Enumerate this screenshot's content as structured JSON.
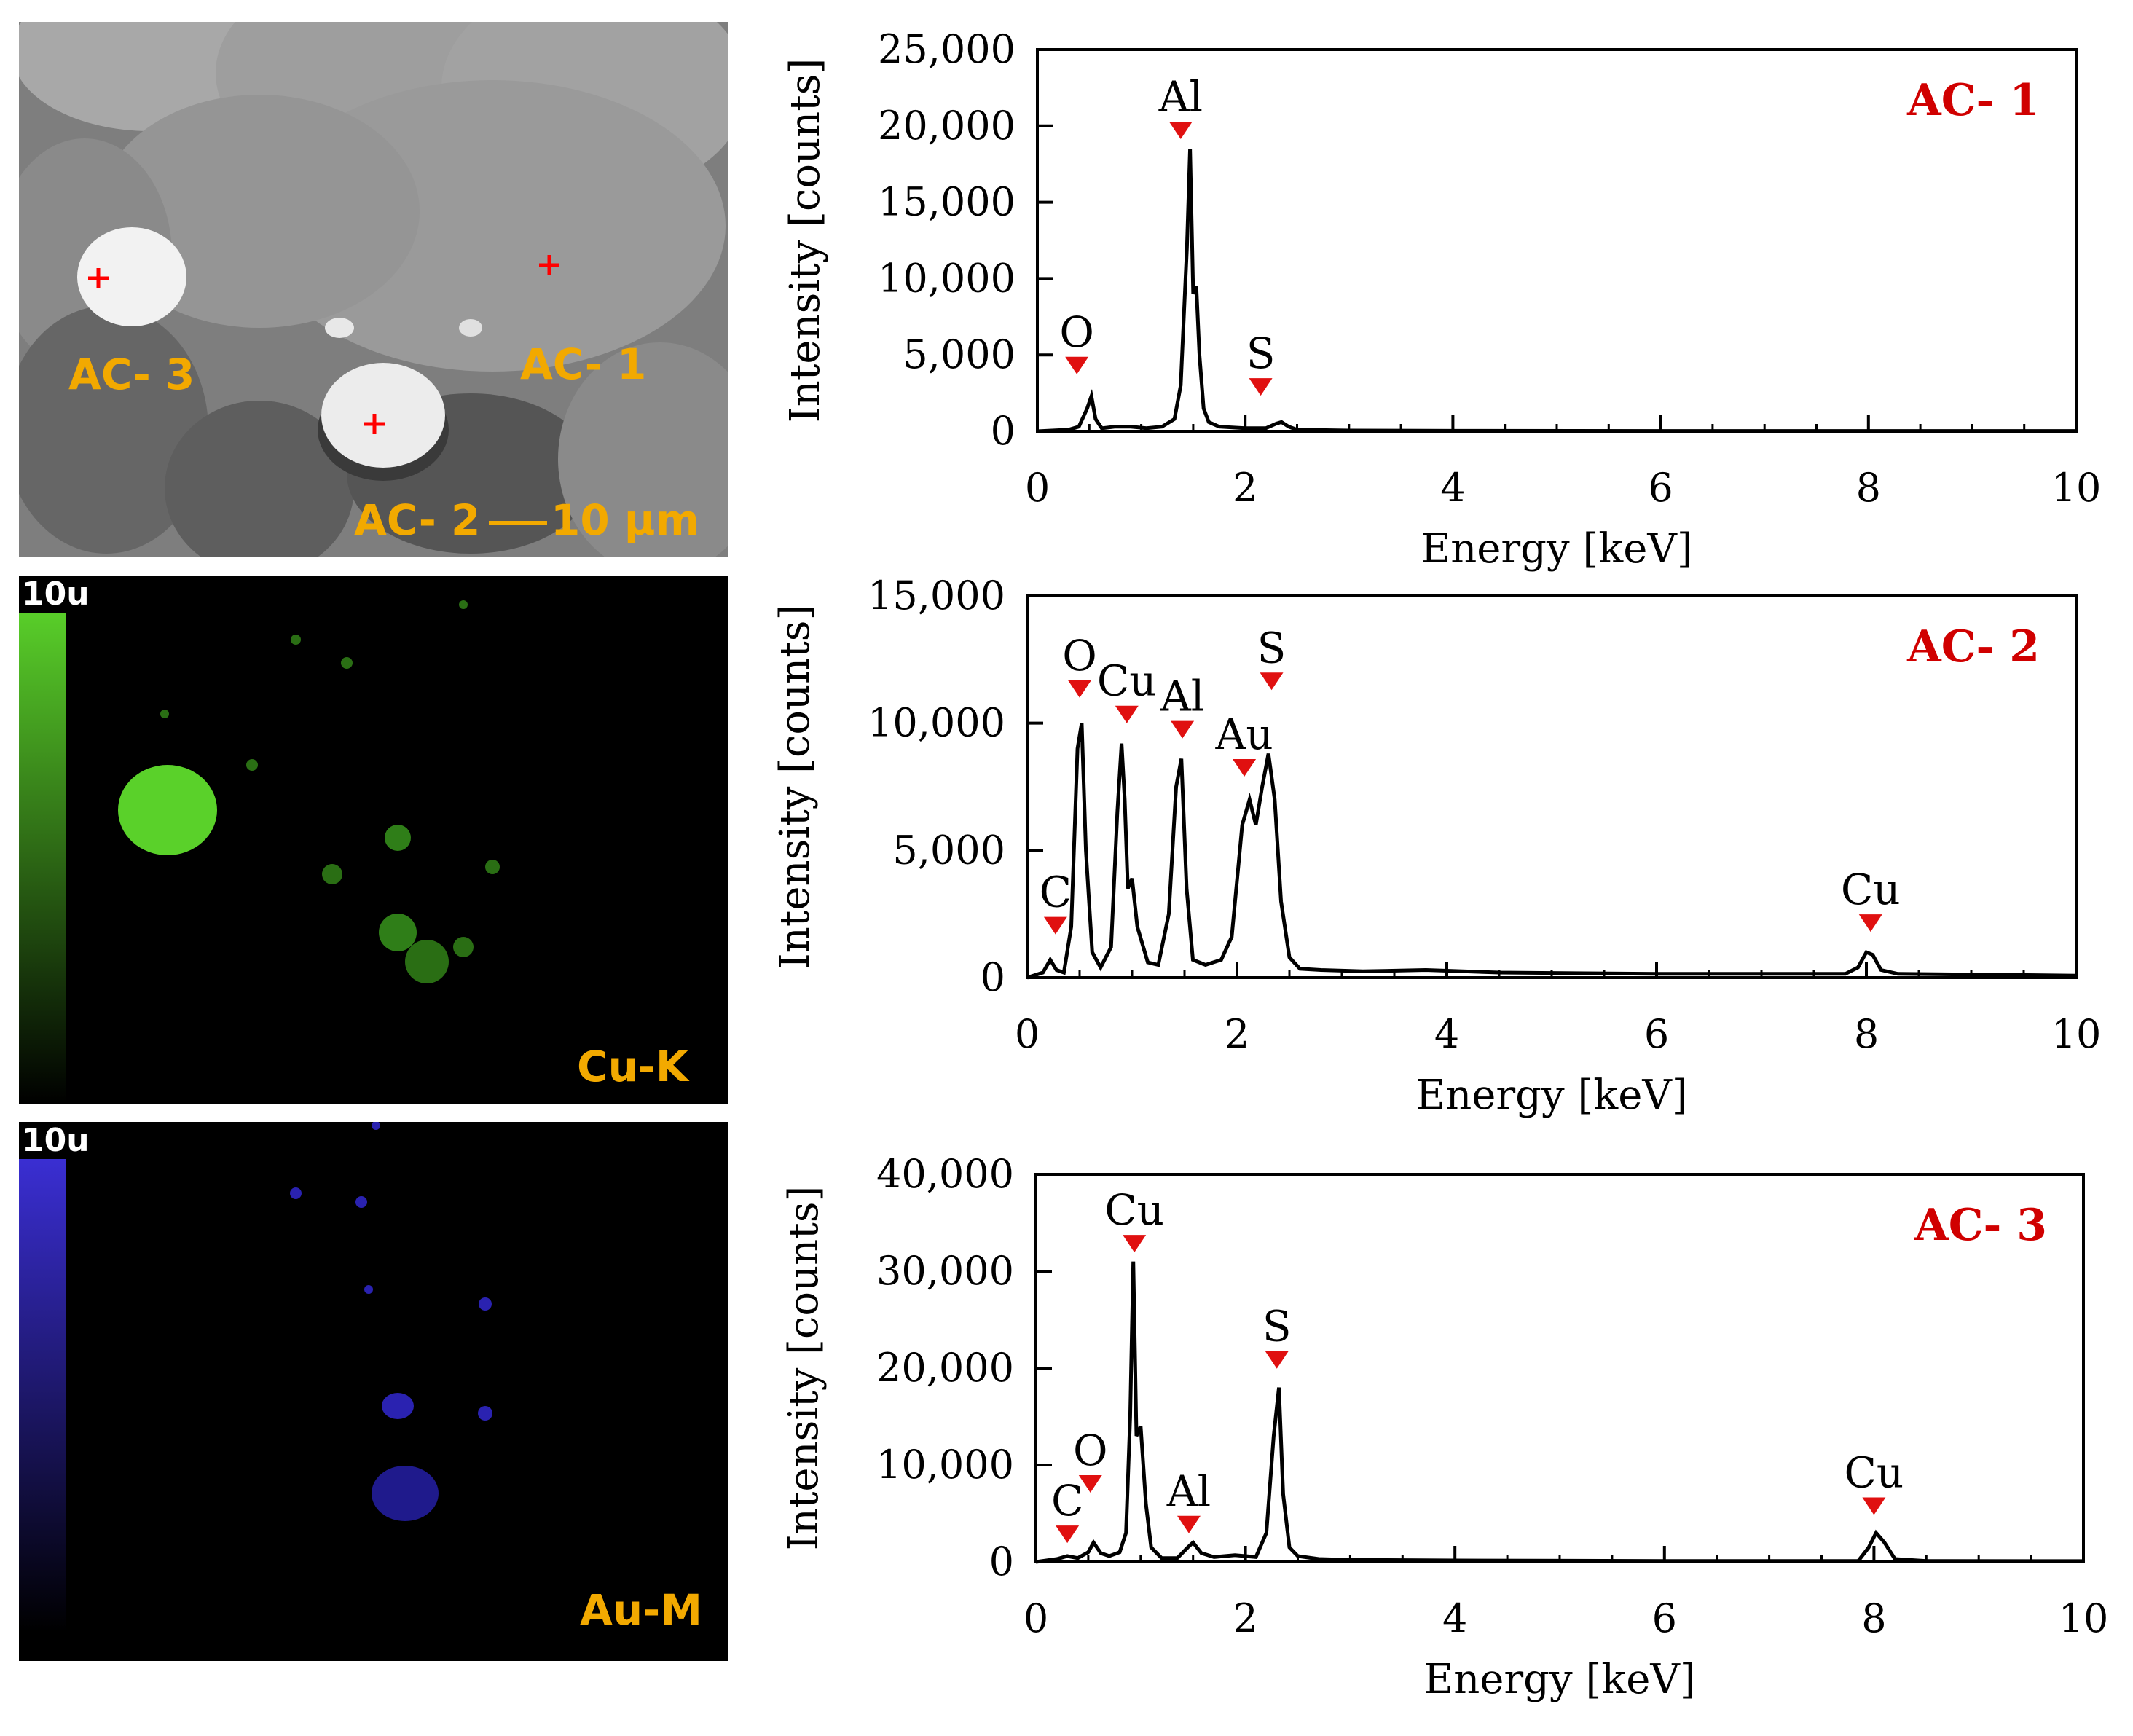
{
  "sem_panel": {
    "labels": [
      "AC- 3",
      "AC- 1",
      "AC- 2"
    ],
    "scale_text": "10 µm",
    "marker_color": "#ff0000",
    "label_color": "#f2a900"
  },
  "map_cu": {
    "label": "Cu-K",
    "scale_tag": "10u",
    "color": "#5ad12a"
  },
  "map_au": {
    "label": "Au-M",
    "scale_tag": "10u",
    "color": "#3b2fd6"
  },
  "chart_data": [
    {
      "type": "line",
      "sample": "AC- 1",
      "xlabel": "Energy [keV]",
      "ylabel": "Intensity [counts]",
      "xlim": [
        0,
        10
      ],
      "ylim": [
        0,
        25000
      ],
      "xticks": [
        "0",
        "2",
        "4",
        "6",
        "8",
        "10"
      ],
      "yticks": [
        "0",
        "5,000",
        "10,000",
        "15,000",
        "20,000",
        "25,000"
      ],
      "ytick_values": [
        0,
        5000,
        10000,
        15000,
        20000,
        25000
      ],
      "peak_labels": [
        {
          "label": "O",
          "x": 0.38,
          "y": 4400
        },
        {
          "label": "Al",
          "x": 1.38,
          "y": 19800
        },
        {
          "label": "S",
          "x": 2.15,
          "y": 3000
        }
      ],
      "spectrum": {
        "x": [
          0,
          0.3,
          0.4,
          0.48,
          0.52,
          0.56,
          0.62,
          0.75,
          0.9,
          1.05,
          1.2,
          1.32,
          1.38,
          1.44,
          1.47,
          1.5,
          1.53,
          1.56,
          1.6,
          1.65,
          1.75,
          2.0,
          2.2,
          2.3,
          2.35,
          2.42,
          2.5,
          3.0,
          4.0,
          6.0,
          8.0,
          10.0
        ],
        "y": [
          0,
          100,
          300,
          1500,
          2300,
          800,
          200,
          300,
          300,
          200,
          300,
          800,
          3000,
          12000,
          18500,
          9000,
          9500,
          5000,
          1500,
          600,
          300,
          200,
          200,
          500,
          600,
          300,
          100,
          50,
          30,
          20,
          20,
          20
        ]
      }
    },
    {
      "type": "line",
      "sample": "AC- 2",
      "xlabel": "Energy [keV]",
      "ylabel": "Intensity [counts]",
      "xlim": [
        0,
        10
      ],
      "ylim": [
        0,
        15000
      ],
      "xticks": [
        "0",
        "2",
        "4",
        "6",
        "8",
        "10"
      ],
      "yticks": [
        "0",
        "5,000",
        "10,000",
        "15,000"
      ],
      "ytick_values": [
        0,
        5000,
        10000,
        15000
      ],
      "peak_labels": [
        {
          "label": "C",
          "x": 0.27,
          "y": 2100
        },
        {
          "label": "O",
          "x": 0.5,
          "y": 11400
        },
        {
          "label": "Cu",
          "x": 0.95,
          "y": 10400
        },
        {
          "label": "Al",
          "x": 1.48,
          "y": 9800
        },
        {
          "label": "Au",
          "x": 2.07,
          "y": 8300
        },
        {
          "label": "S",
          "x": 2.33,
          "y": 11700
        },
        {
          "label": "Cu",
          "x": 8.04,
          "y": 2200
        }
      ],
      "spectrum": {
        "x": [
          0,
          0.15,
          0.22,
          0.28,
          0.35,
          0.42,
          0.48,
          0.52,
          0.56,
          0.62,
          0.7,
          0.8,
          0.86,
          0.9,
          0.93,
          0.96,
          1.0,
          1.05,
          1.15,
          1.25,
          1.35,
          1.42,
          1.47,
          1.52,
          1.58,
          1.7,
          1.85,
          1.95,
          2.05,
          2.12,
          2.18,
          2.24,
          2.3,
          2.36,
          2.42,
          2.5,
          2.6,
          2.8,
          3.2,
          3.8,
          4.5,
          6.0,
          7.8,
          7.92,
          8.0,
          8.06,
          8.14,
          8.3,
          9.0,
          10.0
        ],
        "y": [
          0,
          200,
          700,
          300,
          200,
          2000,
          9000,
          10000,
          5000,
          1000,
          400,
          1200,
          6500,
          9200,
          7000,
          3500,
          3900,
          2000,
          600,
          500,
          2500,
          7500,
          8600,
          3500,
          700,
          500,
          700,
          1600,
          6000,
          7000,
          6000,
          7500,
          8800,
          7000,
          3000,
          800,
          350,
          300,
          250,
          300,
          200,
          150,
          150,
          400,
          1000,
          900,
          300,
          150,
          120,
          80
        ]
      }
    },
    {
      "type": "line",
      "sample": "AC- 3",
      "xlabel": "Energy [keV]",
      "ylabel": "Intensity [counts]",
      "xlim": [
        0,
        10
      ],
      "ylim": [
        0,
        40000
      ],
      "xticks": [
        "0",
        "2",
        "4",
        "6",
        "8",
        "10"
      ],
      "yticks": [
        "0",
        "10,000",
        "20,000",
        "30,000",
        "40,000"
      ],
      "ytick_values": [
        0,
        10000,
        20000,
        30000,
        40000
      ],
      "peak_labels": [
        {
          "label": "C",
          "x": 0.3,
          "y": 3000
        },
        {
          "label": "O",
          "x": 0.52,
          "y": 8200
        },
        {
          "label": "Cu",
          "x": 0.94,
          "y": 33000
        },
        {
          "label": "Al",
          "x": 1.46,
          "y": 4000
        },
        {
          "label": "S",
          "x": 2.3,
          "y": 21000
        },
        {
          "label": "Cu",
          "x": 8.0,
          "y": 5900
        }
      ],
      "spectrum": {
        "x": [
          0,
          0.2,
          0.3,
          0.4,
          0.5,
          0.55,
          0.62,
          0.7,
          0.8,
          0.86,
          0.9,
          0.93,
          0.96,
          1.0,
          1.05,
          1.1,
          1.2,
          1.35,
          1.45,
          1.5,
          1.58,
          1.7,
          1.9,
          2.1,
          2.2,
          2.27,
          2.32,
          2.36,
          2.42,
          2.5,
          2.7,
          3.0,
          4.0,
          6.0,
          7.85,
          7.95,
          8.02,
          8.1,
          8.2,
          8.5,
          10.0
        ],
        "y": [
          0,
          300,
          600,
          400,
          1000,
          2000,
          900,
          600,
          1000,
          3000,
          15000,
          31000,
          13000,
          14000,
          6000,
          1500,
          400,
          400,
          1500,
          2000,
          900,
          500,
          700,
          500,
          3000,
          13000,
          18000,
          7000,
          1500,
          600,
          300,
          200,
          150,
          100,
          100,
          1500,
          3000,
          2000,
          300,
          100,
          80
        ]
      }
    }
  ]
}
